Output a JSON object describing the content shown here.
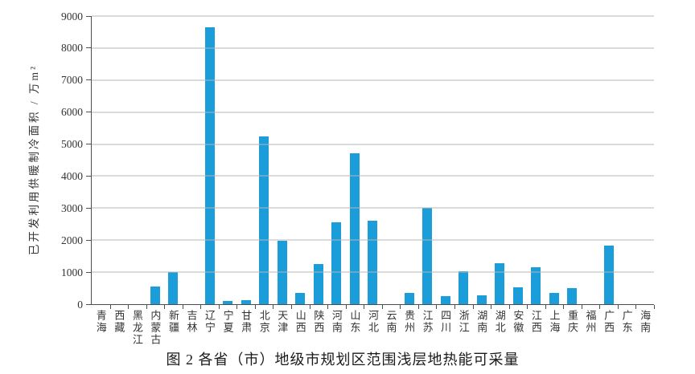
{
  "figure": {
    "caption": "图 2  各省（市）地级市规划区范围浅层地热能可采量"
  },
  "chart_data": {
    "type": "bar",
    "title": "图 2  各省（市）地级市规划区范围浅层地热能可采量",
    "xlabel": "",
    "ylabel": "已开发利用供暖制冷面积 / 万m²",
    "ylim": [
      0,
      9000
    ],
    "ytick_step": 1000,
    "grid": true,
    "legend": "none",
    "bar_color": "#1b9dd9",
    "axis_color": "#4d4d4d",
    "gridline_color": "#b5b5b5",
    "categories": [
      "青海",
      "西藏",
      "黑龙江",
      "内蒙古",
      "新疆",
      "吉林",
      "辽宁",
      "宁夏",
      "甘肃",
      "北京",
      "天津",
      "山西",
      "陕西",
      "河南",
      "山东",
      "河北",
      "云南",
      "贵州",
      "江苏",
      "四川",
      "浙江",
      "湖南",
      "湖北",
      "安徽",
      "江西",
      "上海",
      "重庆",
      "福州",
      "广西",
      "广东",
      "海南"
    ],
    "values": [
      0,
      0,
      0,
      550,
      1000,
      0,
      8650,
      100,
      120,
      5250,
      1990,
      350,
      1250,
      2550,
      4720,
      2600,
      0,
      340,
      3000,
      250,
      1030,
      280,
      1280,
      520,
      1160,
      350,
      500,
      0,
      1830,
      0,
      0
    ]
  }
}
